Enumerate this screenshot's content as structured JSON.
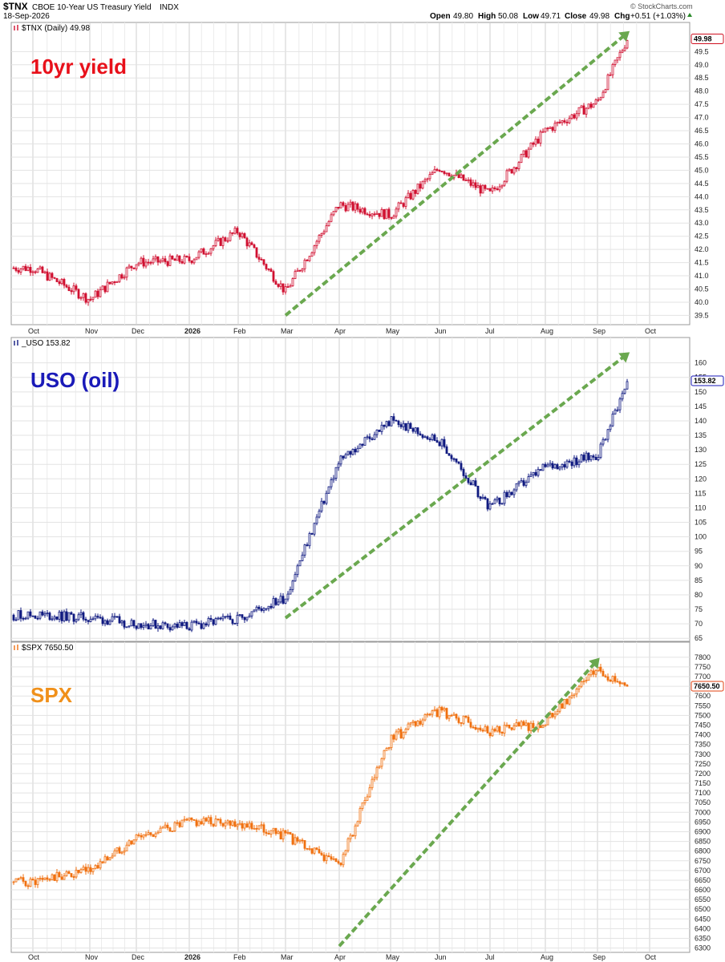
{
  "header": {
    "symbol": "$TNX",
    "name": "CBOE 10-Year US Treasury Yield",
    "exchange": "INDX",
    "date": "18-Sep-2026",
    "open_label": "Open",
    "open": "49.80",
    "high_label": "High",
    "high": "50.08",
    "low_label": "Low",
    "low": "49.71",
    "close_label": "Close",
    "close": "49.98",
    "chg_label": "Chg",
    "chg": "+0.51 (+1.03%)",
    "logo": "© StockCharts.com"
  },
  "panels": [
    {
      "legend": "$TNX (Daily) 49.98",
      "big_label": "10yr yield",
      "big_color": "#e8101a",
      "tag": "49.98",
      "tag_border": "#d01020"
    },
    {
      "legend": "_USO 153.82",
      "big_label": "USO (oil)",
      "big_color": "#1a1ab8",
      "tag": "153.82",
      "tag_border": "#1a1ab8"
    },
    {
      "legend": "$SPX 7650.50",
      "big_label": "SPX",
      "big_color": "#f0901a",
      "tag": "7650.50",
      "tag_border": "#e04010"
    }
  ],
  "months": [
    "Oct",
    "Nov",
    "Dec",
    "2026",
    "Feb",
    "Mar",
    "Apr",
    "May",
    "Jun",
    "Jul",
    "Aug",
    "Sep",
    "Oct"
  ],
  "chart_data": [
    {
      "type": "candlestick",
      "title": "$TNX (Daily) 49.98",
      "color": "#d01030",
      "ylim": [
        39.3,
        50.3
      ],
      "yticks": [
        "39.5",
        "40.0",
        "40.5",
        "41.0",
        "41.5",
        "42.0",
        "42.5",
        "43.0",
        "43.5",
        "44.0",
        "44.5",
        "45.0",
        "45.5",
        "46.0",
        "46.5",
        "47.0",
        "47.5",
        "48.0",
        "48.5",
        "49.0",
        "49.5"
      ],
      "x": [
        "Oct",
        "Nov",
        "Dec",
        "2026",
        "Feb",
        "Mar",
        "Apr",
        "May",
        "Jun",
        "Jul",
        "Aug",
        "Sep",
        "Sep-18"
      ],
      "values": [
        41.3,
        40.1,
        41.5,
        41.6,
        42.7,
        40.4,
        43.7,
        43.3,
        45.1,
        44.1,
        46.5,
        47.6,
        49.98
      ],
      "trendline": {
        "from": [
          "Mar",
          39.5
        ],
        "to": [
          "Sep-18",
          50.2
        ]
      }
    },
    {
      "type": "candlestick",
      "title": "_USO 153.82",
      "color": "#101a80",
      "ylim": [
        64.5,
        163.5
      ],
      "yticks": [
        "65",
        "70",
        "75",
        "80",
        "85",
        "90",
        "95",
        "100",
        "105",
        "110",
        "115",
        "120",
        "125",
        "130",
        "135",
        "140",
        "145",
        "150",
        "155",
        "160"
      ],
      "x": [
        "Oct",
        "Nov",
        "Dec",
        "2026",
        "Feb",
        "Mar",
        "Apr",
        "May",
        "Jun",
        "Jul",
        "Aug",
        "Sep",
        "Sep-18"
      ],
      "values": [
        73,
        72,
        70,
        69,
        72,
        79,
        126,
        140,
        133,
        110,
        124,
        128,
        153.82
      ],
      "trendline": {
        "from": [
          "Mar",
          72
        ],
        "to": [
          "Sep-18",
          163
        ]
      }
    },
    {
      "type": "candlestick",
      "title": "$SPX 7650.50",
      "color": "#f07010",
      "ylim": [
        6290,
        7820
      ],
      "yticks": [
        "6300",
        "6350",
        "6400",
        "6450",
        "6500",
        "6550",
        "6600",
        "6650",
        "6700",
        "6750",
        "6800",
        "6850",
        "6900",
        "6950",
        "7000",
        "7050",
        "7100",
        "7150",
        "7200",
        "7250",
        "7300",
        "7350",
        "7400",
        "7450",
        "7500",
        "7550",
        "7600",
        "7650",
        "7700",
        "7750",
        "7800"
      ],
      "x": [
        "Oct",
        "Nov",
        "Dec",
        "2026",
        "Feb",
        "Mar",
        "Apr",
        "May",
        "Jun",
        "Jul",
        "Aug",
        "Sep",
        "Sep-18"
      ],
      "values": [
        6640,
        6700,
        6870,
        6950,
        6950,
        6880,
        6730,
        7380,
        7520,
        7420,
        7460,
        7740,
        7650.5
      ],
      "trendline": {
        "from": [
          "Apr",
          6310
        ],
        "to": [
          "Sep",
          7785
        ]
      }
    }
  ]
}
